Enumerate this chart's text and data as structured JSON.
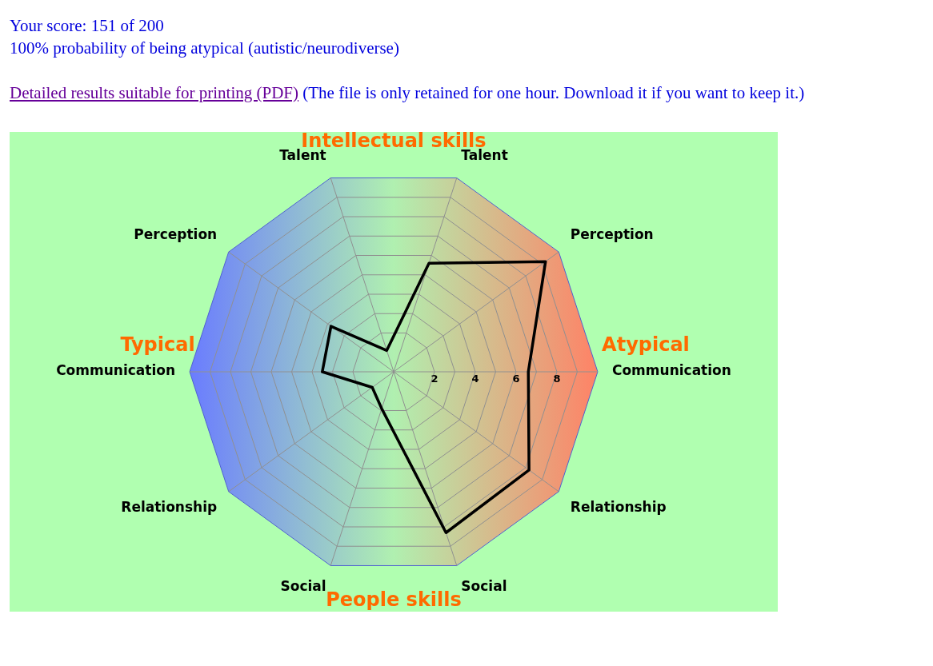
{
  "chart_data": {
    "type": "radar",
    "title": "Your score: 151 of 200",
    "subtitle": "100% probability of being atypical (autistic/neurodiverse)",
    "annotations": [
      "Detailed results suitable for printing (PDF)",
      "(The file is only retained for one hour. Download it if you want to keep it.)",
      "Intellectual skills",
      "People skills",
      "Typical",
      "Atypical"
    ],
    "categories": [
      "Talent",
      "Perception",
      "Communication",
      "Relationship",
      "Social",
      "Social",
      "Relationship",
      "Communication",
      "Perception",
      "Talent"
    ],
    "series": [
      {
        "color": "#000000",
        "values": [
          5.6,
          9.2,
          6.6,
          8.2,
          8.3,
          1.9,
          1.3,
          3.5,
          3.8,
          1.1
        ]
      }
    ],
    "ylim": [
      0,
      10
    ],
    "yticks": [
      2,
      4,
      6,
      8
    ],
    "grid": true,
    "legend": false,
    "marker": "none",
    "line_style": "solid"
  }
}
